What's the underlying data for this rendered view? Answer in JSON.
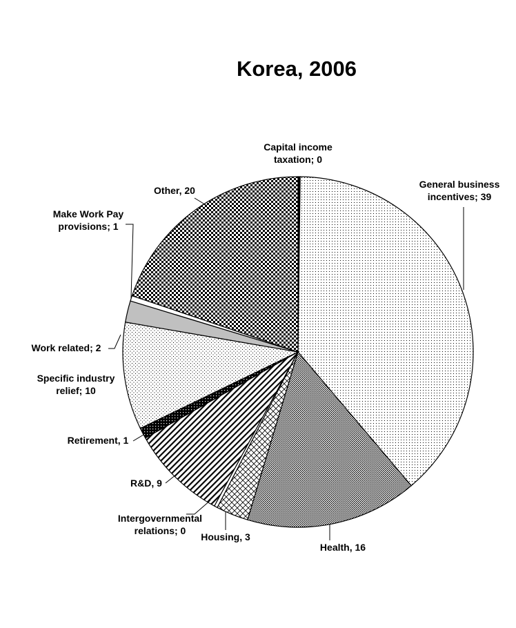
{
  "chart_data": {
    "type": "pie",
    "title": "Korea, 2006",
    "start_angle_deg": 0,
    "direction": "clockwise",
    "slices": [
      {
        "label": "Capital income taxation",
        "value": 0.2,
        "display": "Capital income taxation; 0",
        "lines": [
          "Capital income",
          "taxation; 0"
        ],
        "fill": "solid-black"
      },
      {
        "label": "General business incentives",
        "value": 39,
        "display": "General business incentives; 39",
        "lines": [
          "General business",
          "incentives; 39"
        ],
        "fill": "dots-sparse"
      },
      {
        "label": "Health",
        "value": 16,
        "display": "Health, 16",
        "lines": [
          "Health, 16"
        ],
        "fill": "dots-dense"
      },
      {
        "label": "Housing",
        "value": 3,
        "display": "Housing, 3",
        "lines": [
          "Housing, 3"
        ],
        "fill": "bricks"
      },
      {
        "label": "Intergovernmental relations",
        "value": 0.3,
        "display": "Intergovernmental relations; 0",
        "lines": [
          "Intergovernmental",
          "relations; 0"
        ],
        "fill": "white"
      },
      {
        "label": "R&D",
        "value": 9,
        "display": "R&D, 9",
        "lines": [
          "R&D, 9"
        ],
        "fill": "diagonal-stripes"
      },
      {
        "label": "Retirement",
        "value": 1,
        "display": "Retirement, 1",
        "lines": [
          "Retirement, 1"
        ],
        "fill": "black-dots"
      },
      {
        "label": "Specific industry relief",
        "value": 10,
        "display": "Specific industry relief; 10",
        "lines": [
          "Specific industry",
          "relief; 10"
        ],
        "fill": "fine-dots"
      },
      {
        "label": "Work related",
        "value": 2,
        "display": "Work related; 2",
        "lines": [
          "Work related; 2"
        ],
        "fill": "gray"
      },
      {
        "label": "Make Work Pay provisions",
        "value": 0.5,
        "display": "Make Work Pay provisions; 1",
        "lines": [
          "Make Work Pay",
          "provisions; 1"
        ],
        "fill": "white"
      },
      {
        "label": "Other",
        "value": 20,
        "display": "Other, 20",
        "lines": [
          "Other, 20"
        ],
        "fill": "checker"
      }
    ]
  }
}
